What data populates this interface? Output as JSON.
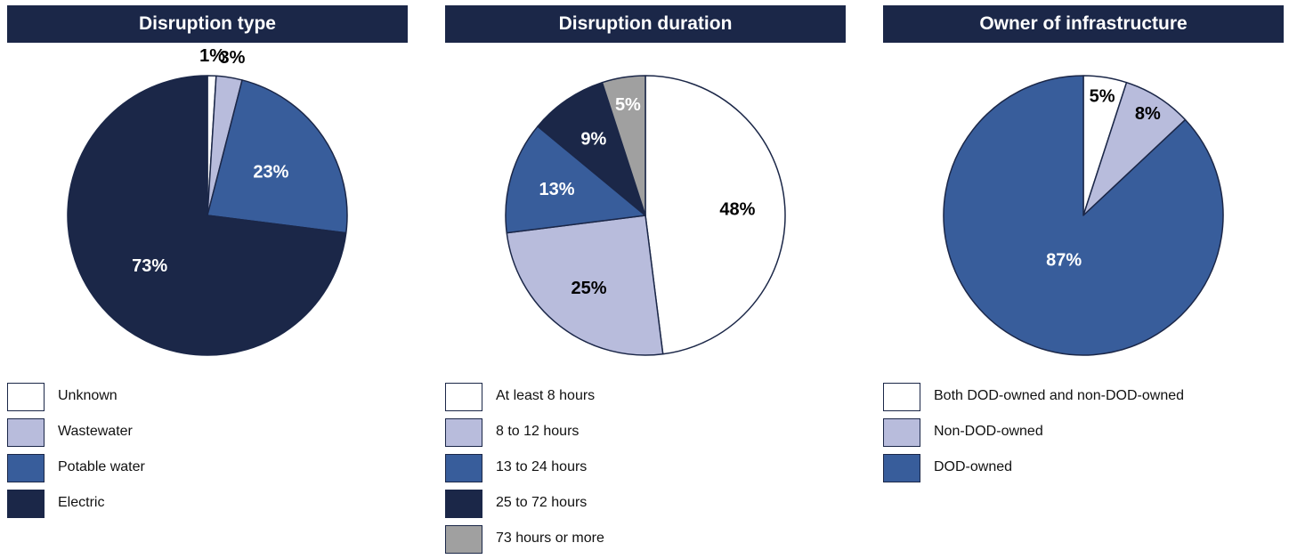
{
  "chart_data": [
    {
      "type": "pie",
      "title": "Disruption type",
      "slices": [
        {
          "label": "Unknown",
          "value": 1,
          "value_label": "1%",
          "color": "#ffffff",
          "text_color": "#000000"
        },
        {
          "label": "Wastewater",
          "value": 3,
          "value_label": "3%",
          "color": "#b8bcdc",
          "text_color": "#000000"
        },
        {
          "label": "Potable water",
          "value": 23,
          "value_label": "23%",
          "color": "#385d9b",
          "text_color": "#ffffff"
        },
        {
          "label": "Electric",
          "value": 73,
          "value_label": "73%",
          "color": "#1b2748",
          "text_color": "#ffffff"
        }
      ]
    },
    {
      "type": "pie",
      "title": "Disruption duration",
      "slices": [
        {
          "label": "At least 8 hours",
          "value": 48,
          "value_label": "48%",
          "color": "#ffffff",
          "text_color": "#000000"
        },
        {
          "label": "8 to 12 hours",
          "value": 25,
          "value_label": "25%",
          "color": "#b8bcdc",
          "text_color": "#000000"
        },
        {
          "label": "13 to 24 hours",
          "value": 13,
          "value_label": "13%",
          "color": "#385d9b",
          "text_color": "#ffffff"
        },
        {
          "label": "25 to 72 hours",
          "value": 9,
          "value_label": "9%",
          "color": "#1b2748",
          "text_color": "#ffffff"
        },
        {
          "label": "73 hours or more",
          "value": 5,
          "value_label": "5%",
          "color": "#a0a0a0",
          "text_color": "#ffffff"
        }
      ]
    },
    {
      "type": "pie",
      "title": "Owner of infrastructure",
      "slices": [
        {
          "label": "Both DOD-owned and non-DOD-owned",
          "value": 5,
          "value_label": "5%",
          "color": "#ffffff",
          "text_color": "#000000"
        },
        {
          "label": "Non-DOD-owned",
          "value": 8,
          "value_label": "8%",
          "color": "#b8bcdc",
          "text_color": "#000000"
        },
        {
          "label": "DOD-owned",
          "value": 87,
          "value_label": "87%",
          "color": "#385d9b",
          "text_color": "#ffffff"
        }
      ]
    }
  ]
}
